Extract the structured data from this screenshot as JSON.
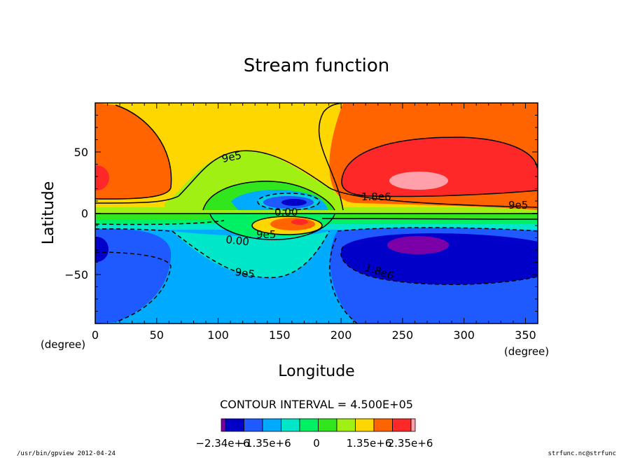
{
  "chart_data": {
    "type": "contour",
    "title": "Stream function",
    "xlabel": "Longitude",
    "ylabel": "Latitude",
    "x_unit": "(degree)",
    "y_unit": "(degree)",
    "xlim": [
      0,
      360
    ],
    "ylim": [
      -90,
      90
    ],
    "x_ticks": [
      0,
      50,
      100,
      150,
      200,
      250,
      300,
      350
    ],
    "y_ticks": [
      -50,
      0,
      50
    ],
    "contour_interval_label": "CONTOUR INTERVAL = 4.500E+05",
    "contour_labels": [
      "9e5",
      "9e5",
      "1.8e6",
      "9e5",
      "0.00",
      "0.00",
      "9e5",
      "9e5",
      "1.8e6"
    ],
    "colorbar": {
      "colors": [
        "#7b00a8",
        "#0000c8",
        "#1e5aff",
        "#00aaff",
        "#00e6c8",
        "#00f064",
        "#32e61e",
        "#a0f014",
        "#ffd700",
        "#ff6400",
        "#ff2828",
        "#ffa0aa"
      ],
      "tick_labels": [
        "-2.34e+6",
        "-1.35e+6",
        "0",
        "1.35e+6",
        "2.35e+6"
      ]
    }
  },
  "footer": {
    "left": "/usr/bin/gpview  2012-04-24",
    "right": "strfunc.nc@strfunc"
  }
}
